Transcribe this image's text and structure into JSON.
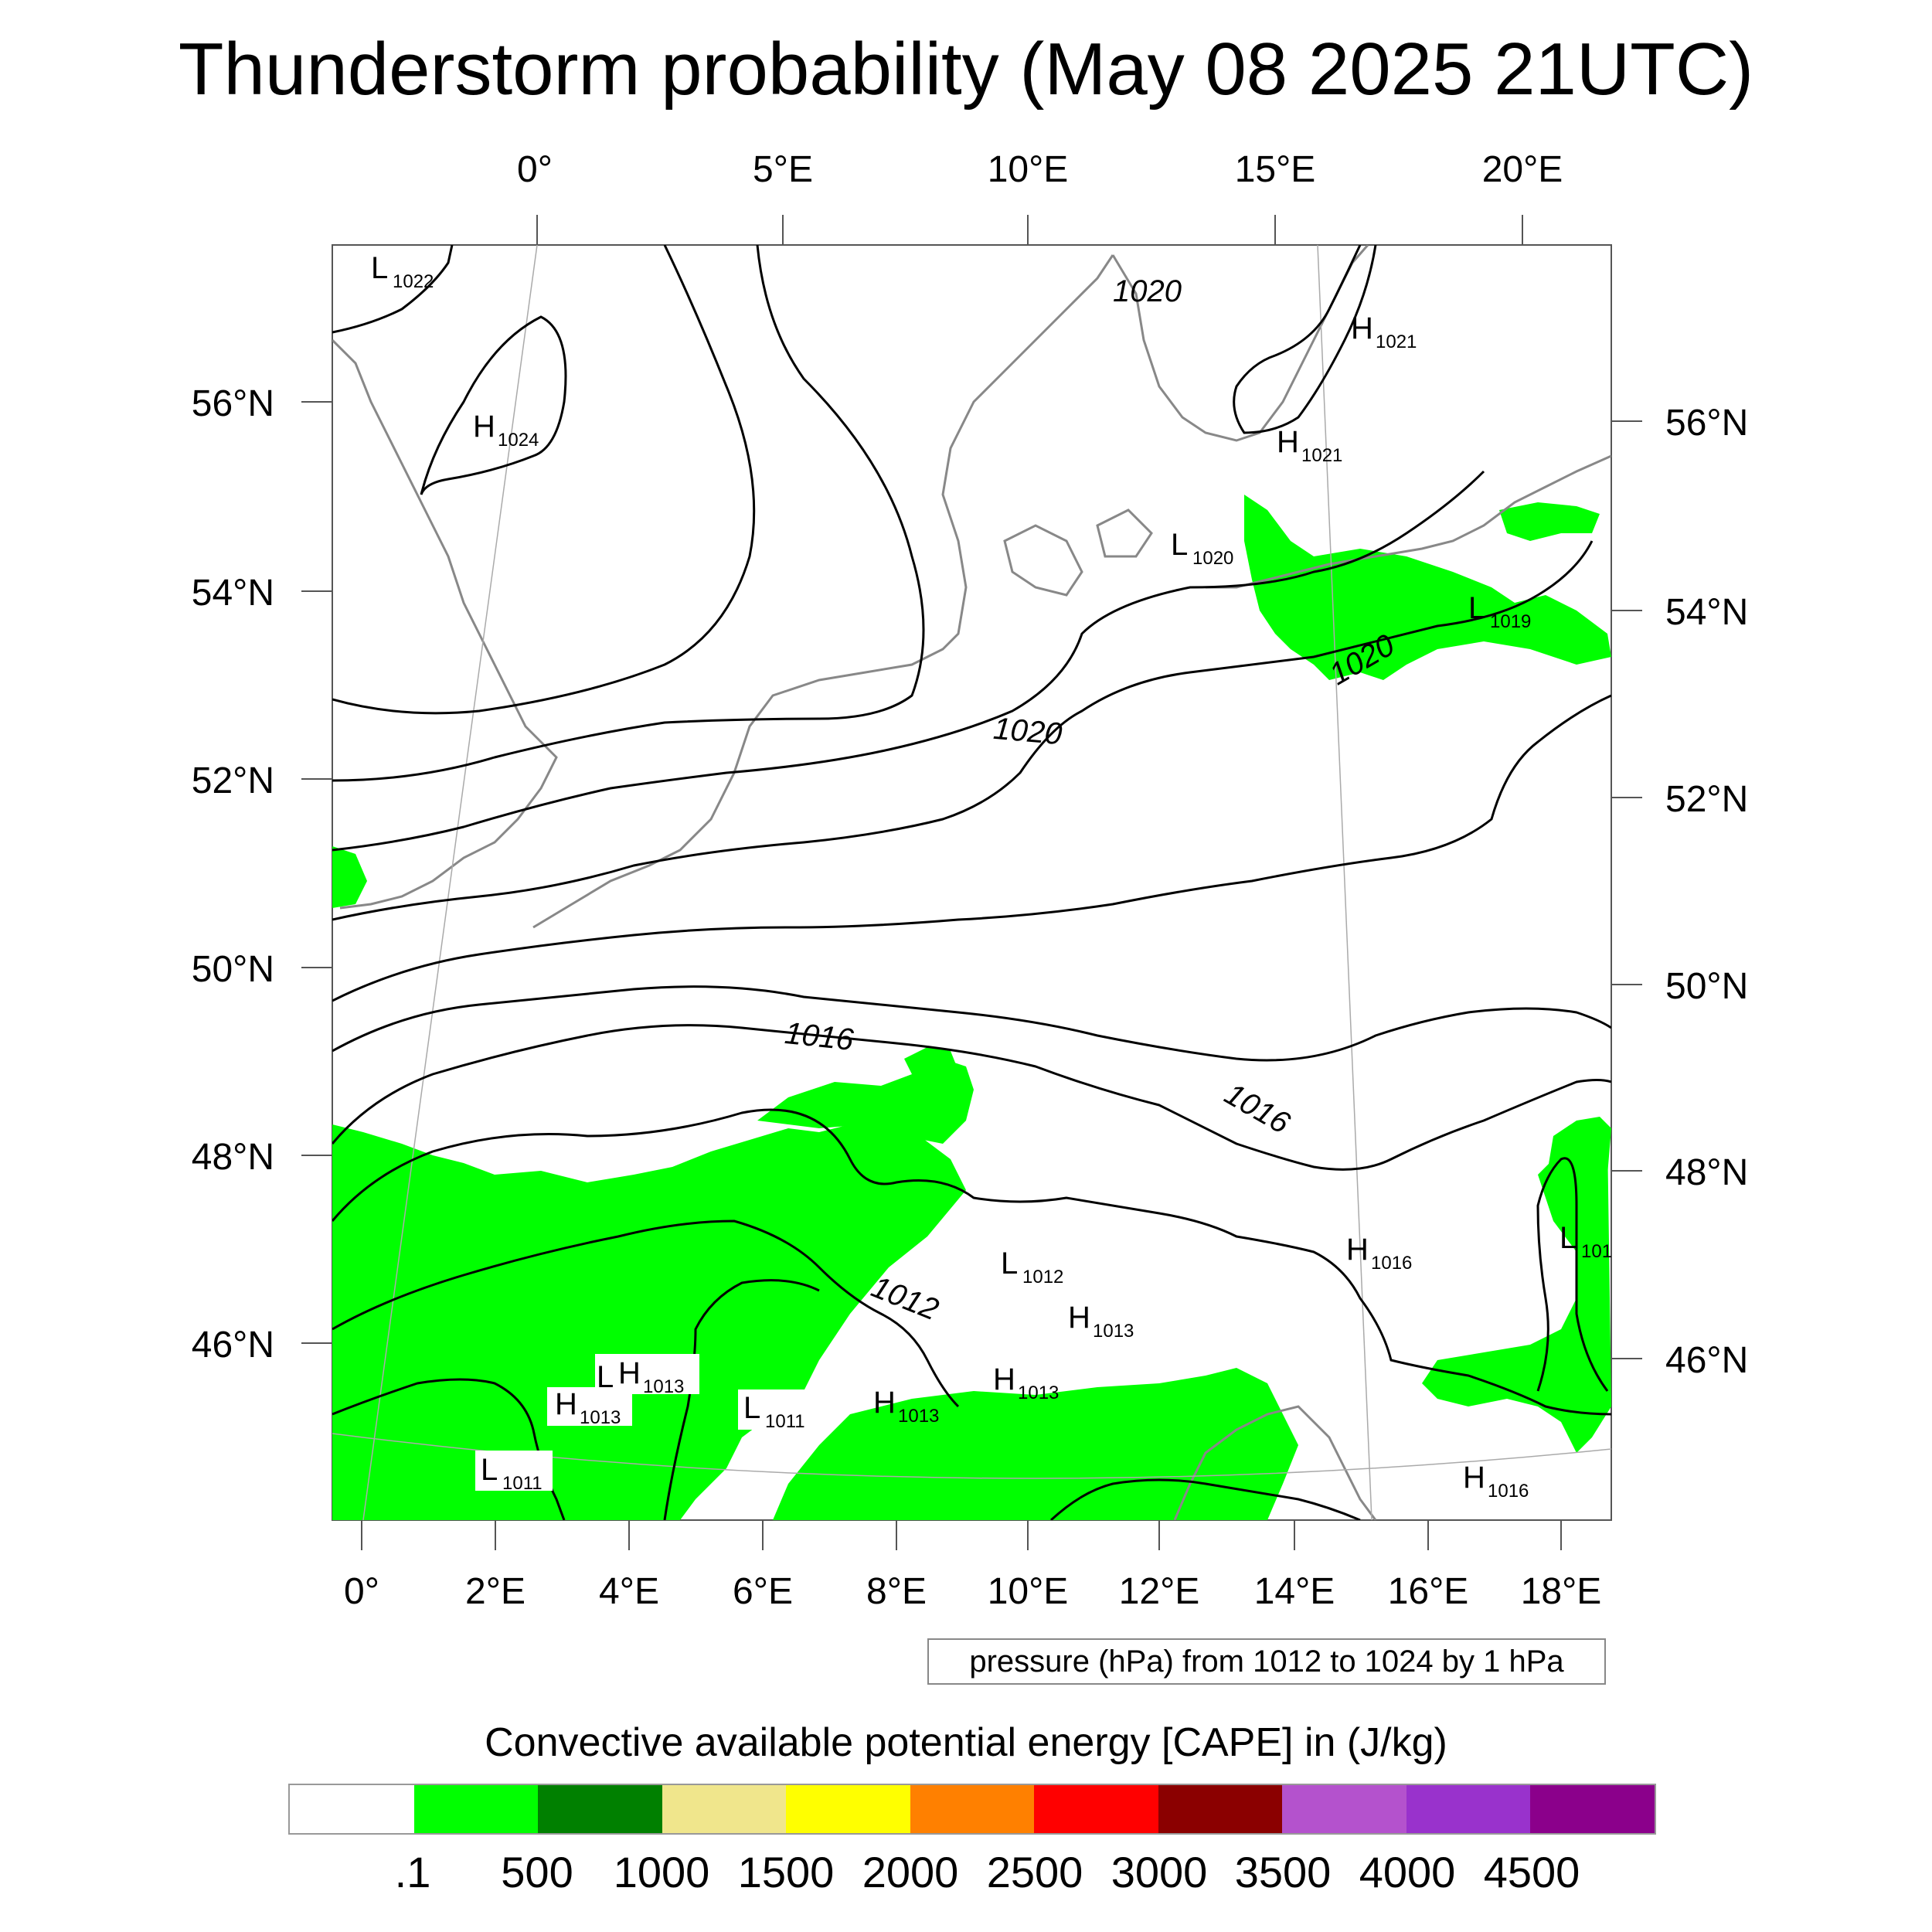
{
  "title": "Thunderstorm probability (May 08 2025 21UTC)",
  "top_lon_labels": [
    "0°",
    "5°E",
    "10°E",
    "15°E",
    "20°E"
  ],
  "bottom_lon_labels": [
    "0°",
    "2°E",
    "4°E",
    "6°E",
    "8°E",
    "10°E",
    "12°E",
    "14°E",
    "16°E",
    "18°E"
  ],
  "left_lat_labels": [
    "56°N",
    "54°N",
    "52°N",
    "50°N",
    "48°N",
    "46°N"
  ],
  "right_lat_labels": [
    "56°N",
    "54°N",
    "52°N",
    "50°N",
    "48°N",
    "46°N"
  ],
  "pressure_note": "pressure (hPa) from 1012 to 1024 by 1 hPa",
  "colorbar_title": "Convective available potential energy [CAPE] in (J/kg)",
  "colorbar": {
    "colors": [
      "#ffffff",
      "#00ff00",
      "#008000",
      "#f0e68c",
      "#ffff00",
      "#ff8000",
      "#ff0000",
      "#8b0000",
      "#b452cd",
      "#9932cc",
      "#8b008b"
    ],
    "labels": [
      ".1",
      "500",
      "1000",
      "1500",
      "2000",
      "2500",
      "3000",
      "3500",
      "4000",
      "4500"
    ]
  },
  "isobar_labels": [
    "1020",
    "1020",
    "1020",
    "1016",
    "1016",
    "1012"
  ],
  "pressure_centers": [
    {
      "letter": "L",
      "value": "1022"
    },
    {
      "letter": "H",
      "value": "1024"
    },
    {
      "letter": "H",
      "value": "1021"
    },
    {
      "letter": "H",
      "value": "1021"
    },
    {
      "letter": "L",
      "value": "1020"
    },
    {
      "letter": "L",
      "value": "1019"
    },
    {
      "letter": "L",
      "value": "101"
    },
    {
      "letter": "H",
      "value": "1016"
    },
    {
      "letter": "L",
      "value": "1012"
    },
    {
      "letter": "H",
      "value": "1013"
    },
    {
      "letter": "H",
      "value": "1013"
    },
    {
      "letter": "H",
      "value": "1013"
    },
    {
      "letter": "H",
      "value": "1013"
    },
    {
      "letter": "L",
      "value": ""
    },
    {
      "letter": "L",
      "value": "1011"
    },
    {
      "letter": "L",
      "value": "1011"
    },
    {
      "letter": "H",
      "value": "1016"
    }
  ]
}
